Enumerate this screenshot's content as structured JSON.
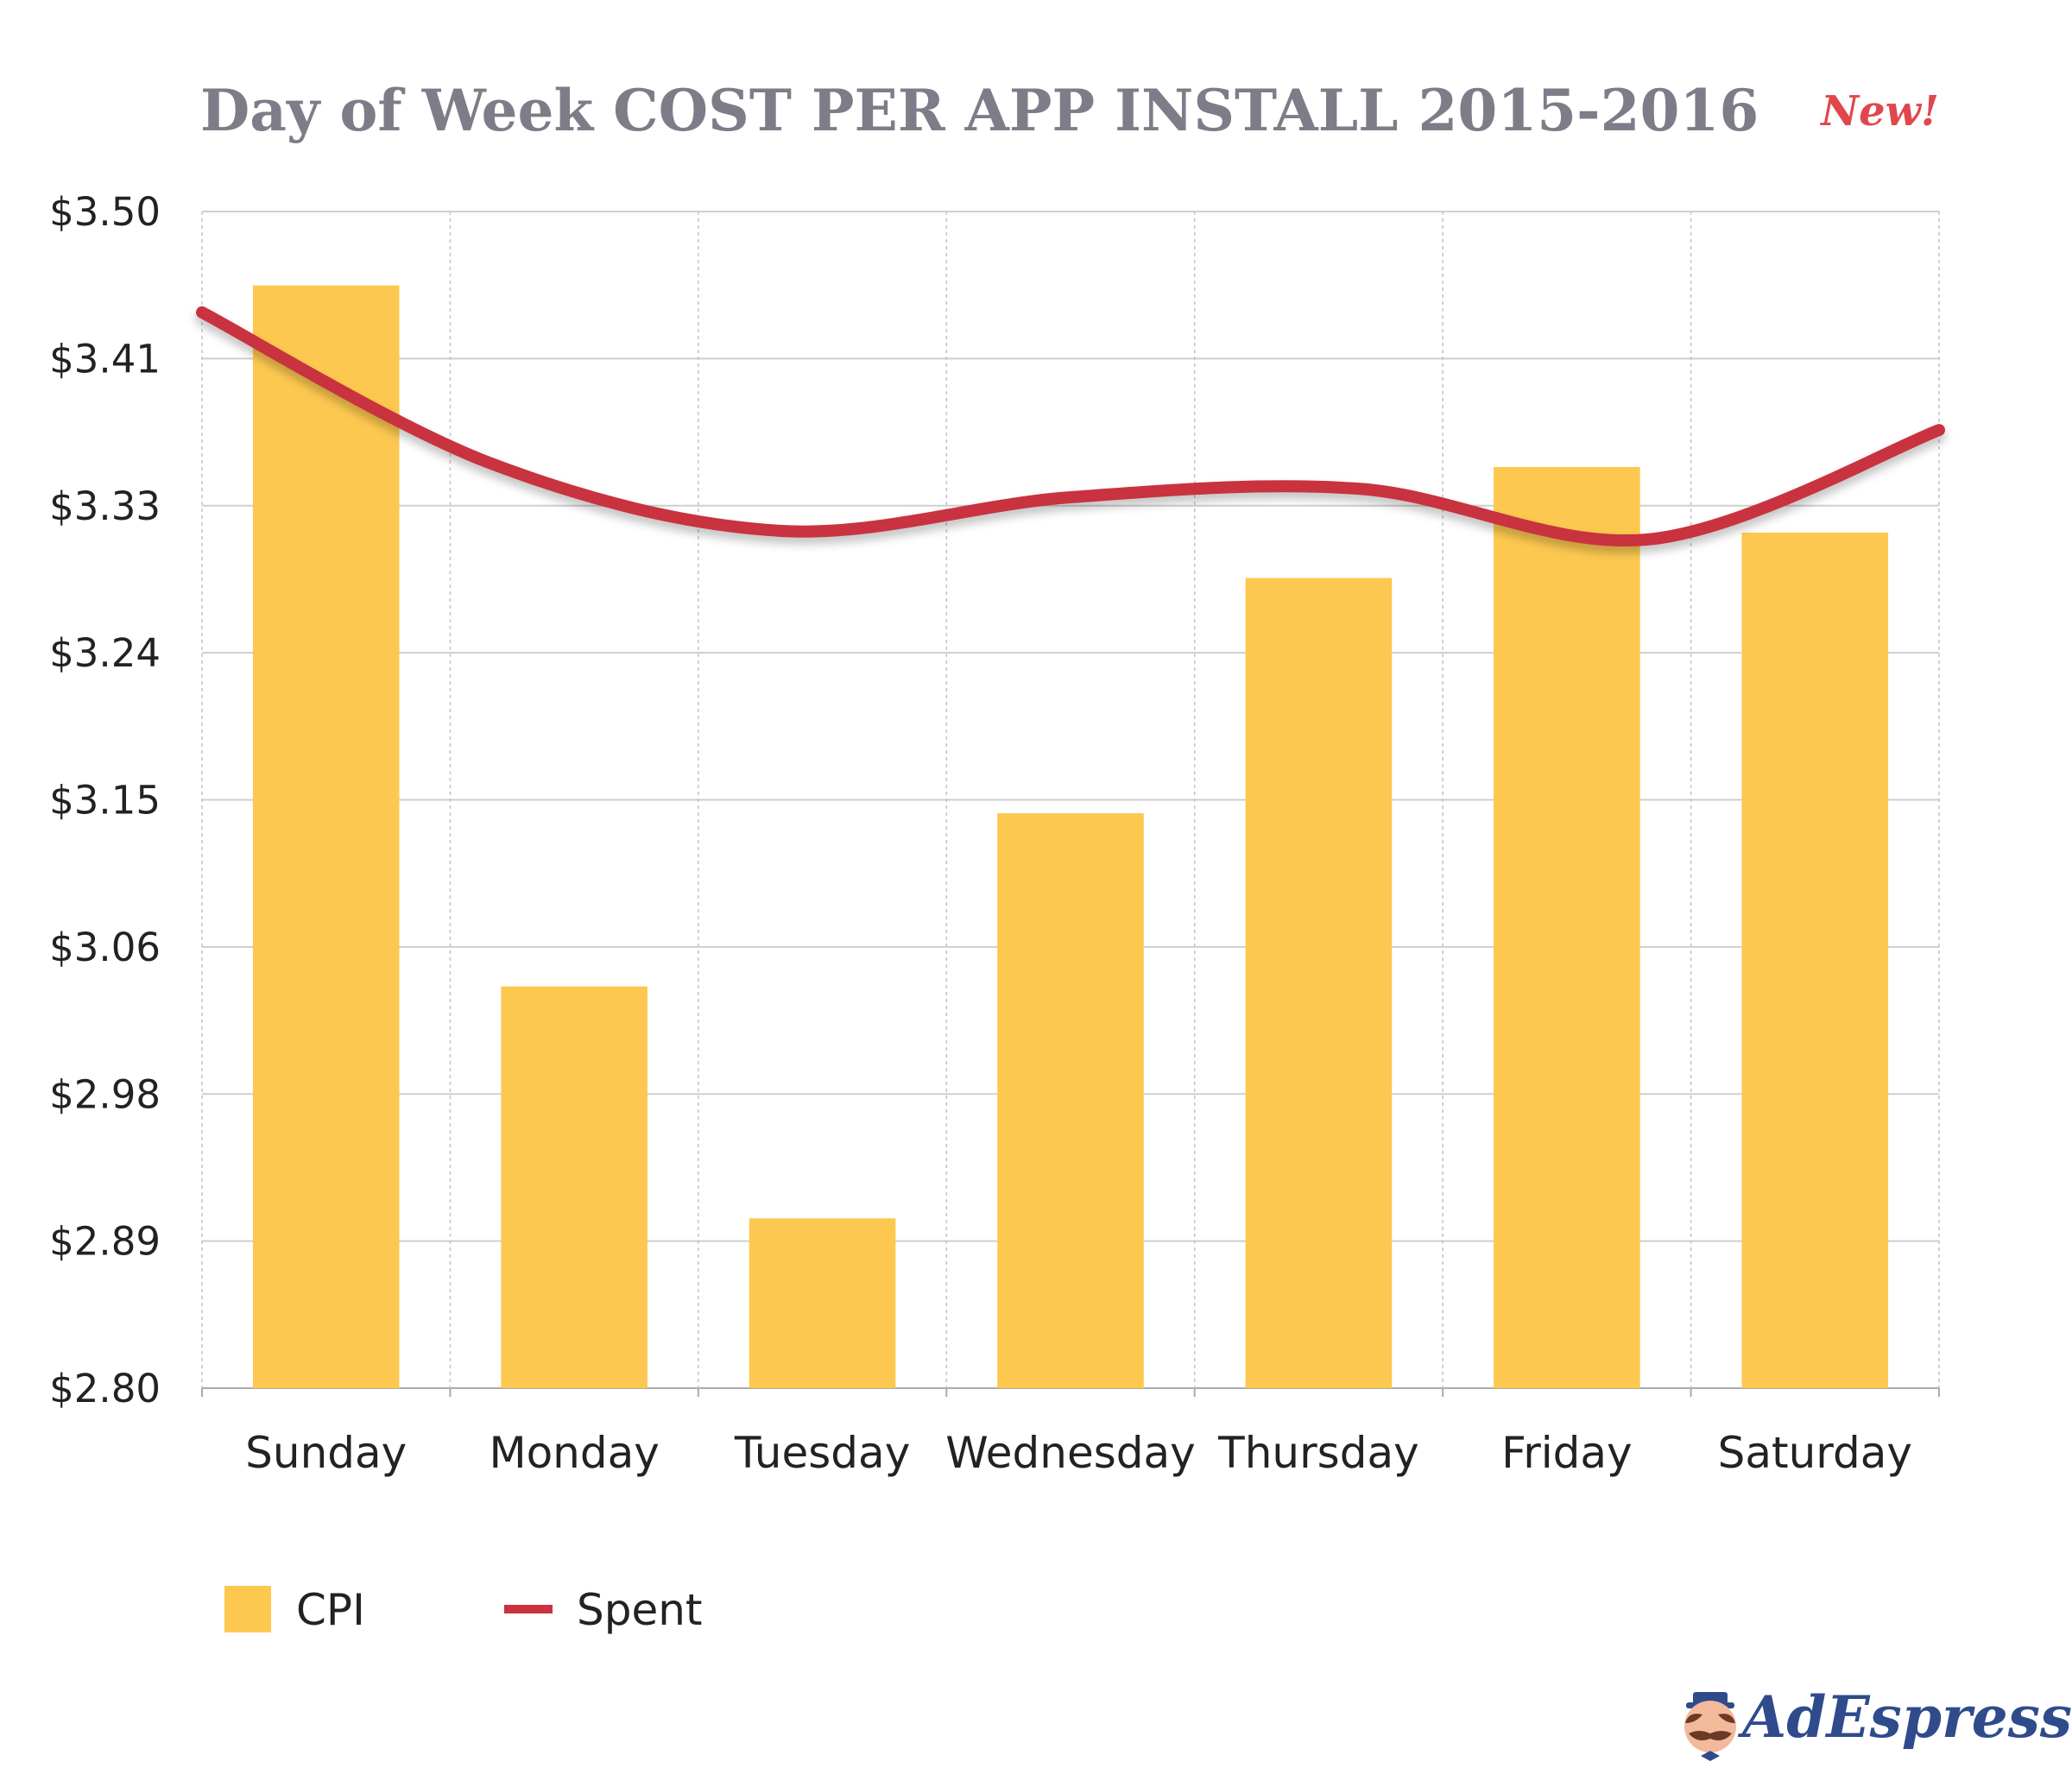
{
  "chart_data": {
    "type": "bar",
    "title": "Day of Week COST PER APP INSTALL 2015-2016",
    "badge": "New!",
    "categories": [
      "Sunday",
      "Monday",
      "Tuesday",
      "Wednesday",
      "Thursday",
      "Friday",
      "Saturday"
    ],
    "y_tick_labels": [
      "$3.50",
      "$3.41",
      "$3.33",
      "$3.24",
      "$3.15",
      "$3.06",
      "$2.98",
      "$2.89",
      "$2.80"
    ],
    "ylim": [
      2.8,
      3.5
    ],
    "grid": true,
    "legend_position": "bottom-left",
    "series": [
      {
        "name": "CPI",
        "type": "bar",
        "color": "#fcc84f",
        "values": [
          3.456,
          3.039,
          2.901,
          3.142,
          3.282,
          3.348,
          3.309
        ]
      },
      {
        "name": "Spent",
        "type": "line",
        "smooth": true,
        "color": "#c9323f",
        "values": [
          3.44,
          3.35,
          3.31,
          3.33,
          3.335,
          3.305,
          3.37
        ]
      }
    ]
  },
  "brand": {
    "name": "AdEspresso"
  }
}
